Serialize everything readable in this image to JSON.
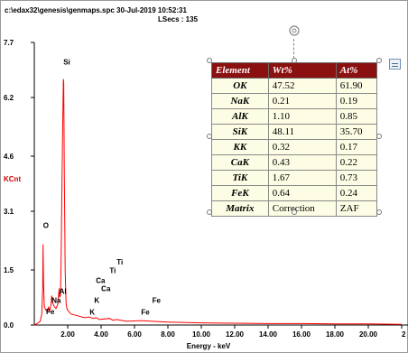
{
  "header": {
    "file_line": "c:\\edax32\\genesis\\genmaps.spc  30-Jul-2019 10:52:31",
    "lsecs_line": "LSecs : 135"
  },
  "chart_data": {
    "type": "line",
    "ylabel": "KCnt",
    "xlabel": "Energy - keV",
    "xlim": [
      0.0,
      22.0
    ],
    "ylim": [
      0.0,
      7.7
    ],
    "y_ticks": [
      "0.0",
      "1.5",
      "3.1",
      "4.6",
      "6.2",
      "7.7"
    ],
    "x_ticks": [
      "2.00",
      "4.00",
      "6.00",
      "8.00",
      "10.00",
      "12.00",
      "14.00",
      "16.00",
      "18.00",
      "20.00",
      "2"
    ],
    "series": [
      {
        "color": "#ff0000",
        "x": [
          0.0,
          0.2,
          0.35,
          0.45,
          0.5,
          0.525,
          0.55,
          0.6,
          0.7,
          0.8,
          0.85,
          0.9,
          1.0,
          1.04,
          1.1,
          1.2,
          1.3,
          1.4,
          1.45,
          1.49,
          1.52,
          1.56,
          1.6,
          1.65,
          1.7,
          1.74,
          1.76,
          1.8,
          1.85,
          1.9,
          1.95,
          2.0,
          2.2,
          2.6,
          3.0,
          3.31,
          3.5,
          3.69,
          3.9,
          4.51,
          4.7,
          4.93,
          5.5,
          6.4,
          7.06,
          8.0,
          10.0,
          12.0,
          14.0,
          16.0,
          18.0,
          20.0,
          22.0
        ],
        "y": [
          0.0,
          0.05,
          0.1,
          0.3,
          1.0,
          2.2,
          1.2,
          0.5,
          0.4,
          0.38,
          0.5,
          0.35,
          0.55,
          0.8,
          0.6,
          0.5,
          0.45,
          0.55,
          0.8,
          1.0,
          0.75,
          0.8,
          1.6,
          3.5,
          5.5,
          6.7,
          6.6,
          4.0,
          1.5,
          0.6,
          0.45,
          0.4,
          0.3,
          0.25,
          0.2,
          0.22,
          0.18,
          0.2,
          0.15,
          0.18,
          0.13,
          0.15,
          0.1,
          0.12,
          0.1,
          0.08,
          0.06,
          0.05,
          0.04,
          0.04,
          0.03,
          0.03,
          0.02
        ]
      }
    ],
    "peak_labels": [
      {
        "text": "Si",
        "x": 1.74,
        "y": 7.1
      },
      {
        "text": "O",
        "x": 0.525,
        "y": 2.65
      },
      {
        "text": "Al",
        "x": 1.49,
        "y": 0.85
      },
      {
        "text": "Na",
        "x": 1.04,
        "y": 0.6
      },
      {
        "text": "Fe",
        "x": 0.7,
        "y": 0.3
      },
      {
        "text": "Ti",
        "x": 4.93,
        "y": 1.65
      },
      {
        "text": "Ti",
        "x": 4.51,
        "y": 1.42
      },
      {
        "text": "Ca",
        "x": 3.69,
        "y": 1.15
      },
      {
        "text": "Ca",
        "x": 4.01,
        "y": 0.92
      },
      {
        "text": "K",
        "x": 3.59,
        "y": 0.6
      },
      {
        "text": "K",
        "x": 3.31,
        "y": 0.28
      },
      {
        "text": "Fe",
        "x": 7.06,
        "y": 0.6
      },
      {
        "text": "Fe",
        "x": 6.4,
        "y": 0.28
      }
    ]
  },
  "quant_table": {
    "headers": [
      "Element",
      "Wt%",
      "At%"
    ],
    "rows": [
      [
        "OK",
        "47.52",
        "61.90"
      ],
      [
        "NaK",
        "0.21",
        "0.19"
      ],
      [
        "AlK",
        "1.10",
        "0.85"
      ],
      [
        "SiK",
        "48.11",
        "35.70"
      ],
      [
        "KK",
        "0.32",
        "0.17"
      ],
      [
        "CaK",
        "0.43",
        "0.22"
      ],
      [
        "TiK",
        "1.67",
        "0.73"
      ],
      [
        "FeK",
        "0.64",
        "0.24"
      ],
      [
        "Matrix",
        "Correction",
        "ZAF"
      ]
    ],
    "header_bg": "#8b1010",
    "cell_bg": "#fdfce4"
  },
  "icons": {
    "rotate": "rotate-handle-icon",
    "side": "layout-toggle-icon"
  }
}
